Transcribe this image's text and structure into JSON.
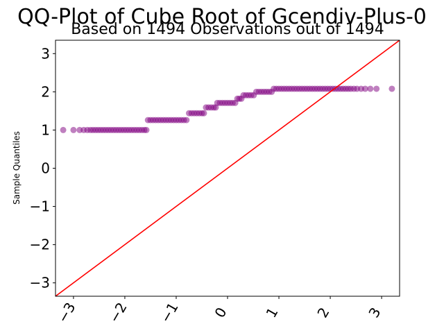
{
  "chart_data": {
    "type": "scatter",
    "title": "QQ-Plot of Cube Root of Gcendiv-Plus-0",
    "subtitle": "Based on 1494 Observations out of 1494",
    "xlabel": "",
    "ylabel": "Sample Quantiles",
    "xlim": [
      -3.35,
      3.35
    ],
    "ylim": [
      -3.35,
      3.35
    ],
    "xticks": [
      -3,
      -2,
      -1,
      0,
      1,
      2,
      3
    ],
    "xtick_labels": [
      "−3",
      "−2",
      "−1",
      "0",
      "1",
      "2",
      "3"
    ],
    "yticks": [
      -3,
      -2,
      -1,
      0,
      1,
      2,
      3
    ],
    "ytick_labels": [
      "−3",
      "−2",
      "−1",
      "0",
      "1",
      "2",
      "3"
    ],
    "grid": false,
    "marker_color": "#800080",
    "line_color": "#ff0000",
    "reference_line": {
      "slope": 1,
      "intercept": 0
    },
    "series": [
      {
        "points": [
          {
            "x": -3.2,
            "y": 1.0
          },
          {
            "x": -3.0,
            "y": 1.0
          },
          {
            "x": -2.88,
            "y": 1.0
          },
          {
            "x": -2.8,
            "y": 1.0
          },
          {
            "x": -2.73,
            "y": 1.0
          },
          {
            "x": -2.67,
            "y": 1.0
          },
          {
            "x": -2.62,
            "y": 1.0
          },
          {
            "x": -2.57,
            "y": 1.0
          },
          {
            "x": -2.52,
            "y": 1.0
          },
          {
            "x": -2.47,
            "y": 1.0
          },
          {
            "x": -2.42,
            "y": 1.0
          },
          {
            "x": -2.37,
            "y": 1.0
          },
          {
            "x": -2.32,
            "y": 1.0
          },
          {
            "x": -2.27,
            "y": 1.0
          },
          {
            "x": -2.22,
            "y": 1.0
          },
          {
            "x": -2.17,
            "y": 1.0
          },
          {
            "x": -2.12,
            "y": 1.0
          },
          {
            "x": -2.07,
            "y": 1.0
          },
          {
            "x": -2.02,
            "y": 1.0
          },
          {
            "x": -1.97,
            "y": 1.0
          },
          {
            "x": -1.92,
            "y": 1.0
          },
          {
            "x": -1.87,
            "y": 1.0
          },
          {
            "x": -1.82,
            "y": 1.0
          },
          {
            "x": -1.77,
            "y": 1.0
          },
          {
            "x": -1.72,
            "y": 1.0
          },
          {
            "x": -1.67,
            "y": 1.0
          },
          {
            "x": -1.62,
            "y": 1.0
          },
          {
            "x": -1.58,
            "y": 1.0
          },
          {
            "x": -1.55,
            "y": 1.26
          },
          {
            "x": -1.5,
            "y": 1.26
          },
          {
            "x": -1.45,
            "y": 1.26
          },
          {
            "x": -1.4,
            "y": 1.26
          },
          {
            "x": -1.35,
            "y": 1.26
          },
          {
            "x": -1.3,
            "y": 1.26
          },
          {
            "x": -1.25,
            "y": 1.26
          },
          {
            "x": -1.2,
            "y": 1.26
          },
          {
            "x": -1.15,
            "y": 1.26
          },
          {
            "x": -1.1,
            "y": 1.26
          },
          {
            "x": -1.05,
            "y": 1.26
          },
          {
            "x": -1.0,
            "y": 1.26
          },
          {
            "x": -0.95,
            "y": 1.26
          },
          {
            "x": -0.9,
            "y": 1.26
          },
          {
            "x": -0.85,
            "y": 1.26
          },
          {
            "x": -0.8,
            "y": 1.26
          },
          {
            "x": -0.75,
            "y": 1.44
          },
          {
            "x": -0.7,
            "y": 1.44
          },
          {
            "x": -0.65,
            "y": 1.44
          },
          {
            "x": -0.6,
            "y": 1.44
          },
          {
            "x": -0.55,
            "y": 1.44
          },
          {
            "x": -0.5,
            "y": 1.44
          },
          {
            "x": -0.46,
            "y": 1.44
          },
          {
            "x": -0.42,
            "y": 1.59
          },
          {
            "x": -0.37,
            "y": 1.59
          },
          {
            "x": -0.32,
            "y": 1.59
          },
          {
            "x": -0.27,
            "y": 1.59
          },
          {
            "x": -0.23,
            "y": 1.59
          },
          {
            "x": -0.2,
            "y": 1.71
          },
          {
            "x": -0.15,
            "y": 1.71
          },
          {
            "x": -0.1,
            "y": 1.71
          },
          {
            "x": -0.05,
            "y": 1.71
          },
          {
            "x": 0.0,
            "y": 1.71
          },
          {
            "x": 0.05,
            "y": 1.71
          },
          {
            "x": 0.1,
            "y": 1.71
          },
          {
            "x": 0.15,
            "y": 1.71
          },
          {
            "x": 0.19,
            "y": 1.82
          },
          {
            "x": 0.23,
            "y": 1.82
          },
          {
            "x": 0.27,
            "y": 1.82
          },
          {
            "x": 0.31,
            "y": 1.91
          },
          {
            "x": 0.36,
            "y": 1.91
          },
          {
            "x": 0.41,
            "y": 1.91
          },
          {
            "x": 0.46,
            "y": 1.91
          },
          {
            "x": 0.51,
            "y": 1.91
          },
          {
            "x": 0.56,
            "y": 2.0
          },
          {
            "x": 0.61,
            "y": 2.0
          },
          {
            "x": 0.66,
            "y": 2.0
          },
          {
            "x": 0.71,
            "y": 2.0
          },
          {
            "x": 0.76,
            "y": 2.0
          },
          {
            "x": 0.81,
            "y": 2.0
          },
          {
            "x": 0.86,
            "y": 2.0
          },
          {
            "x": 0.9,
            "y": 2.08
          },
          {
            "x": 0.95,
            "y": 2.08
          },
          {
            "x": 1.0,
            "y": 2.08
          },
          {
            "x": 1.05,
            "y": 2.08
          },
          {
            "x": 1.1,
            "y": 2.08
          },
          {
            "x": 1.15,
            "y": 2.08
          },
          {
            "x": 1.2,
            "y": 2.08
          },
          {
            "x": 1.25,
            "y": 2.08
          },
          {
            "x": 1.3,
            "y": 2.08
          },
          {
            "x": 1.35,
            "y": 2.08
          },
          {
            "x": 1.4,
            "y": 2.08
          },
          {
            "x": 1.45,
            "y": 2.08
          },
          {
            "x": 1.5,
            "y": 2.08
          },
          {
            "x": 1.55,
            "y": 2.08
          },
          {
            "x": 1.6,
            "y": 2.08
          },
          {
            "x": 1.65,
            "y": 2.08
          },
          {
            "x": 1.7,
            "y": 2.08
          },
          {
            "x": 1.75,
            "y": 2.08
          },
          {
            "x": 1.8,
            "y": 2.08
          },
          {
            "x": 1.85,
            "y": 2.08
          },
          {
            "x": 1.9,
            "y": 2.08
          },
          {
            "x": 1.95,
            "y": 2.08
          },
          {
            "x": 2.0,
            "y": 2.08
          },
          {
            "x": 2.05,
            "y": 2.08
          },
          {
            "x": 2.1,
            "y": 2.08
          },
          {
            "x": 2.15,
            "y": 2.08
          },
          {
            "x": 2.2,
            "y": 2.08
          },
          {
            "x": 2.25,
            "y": 2.08
          },
          {
            "x": 2.3,
            "y": 2.08
          },
          {
            "x": 2.35,
            "y": 2.08
          },
          {
            "x": 2.4,
            "y": 2.08
          },
          {
            "x": 2.46,
            "y": 2.08
          },
          {
            "x": 2.52,
            "y": 2.08
          },
          {
            "x": 2.6,
            "y": 2.08
          },
          {
            "x": 2.68,
            "y": 2.08
          },
          {
            "x": 2.78,
            "y": 2.08
          },
          {
            "x": 2.9,
            "y": 2.08
          },
          {
            "x": 3.2,
            "y": 2.08
          }
        ]
      }
    ]
  }
}
